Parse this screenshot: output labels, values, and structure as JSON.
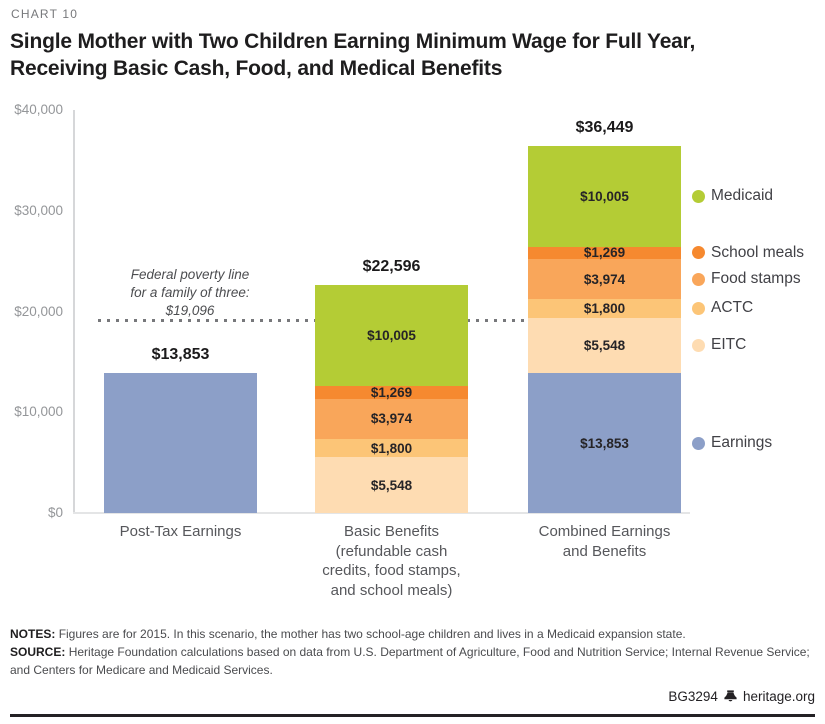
{
  "header": {
    "kicker": "CHART 10",
    "title": "Single Mother with Two Children Earning Minimum Wage for Full Year,\nReceiving Basic Cash, Food, and Medical Benefits"
  },
  "chart_data": {
    "type": "bar",
    "subtype": "stacked",
    "ylim": [
      0,
      40000
    ],
    "yticks": [
      0,
      10000,
      20000,
      30000,
      40000
    ],
    "ytick_labels": [
      "$0",
      "$10,000",
      "$20,000",
      "$30,000",
      "$40,000"
    ],
    "grid": "off",
    "legend_position": "right",
    "colors": {
      "Medicaid": "#b4cc35",
      "School meals": "#f6892f",
      "Food stamps": "#f9a65a",
      "ACTC": "#fcc577",
      "EITC": "#fedcb2",
      "Earnings": "#8c9fc8"
    },
    "categories": [
      "Post-Tax Earnings",
      "Basic Benefits (refundable cash credits, food stamps, and school meals)",
      "Combined Earnings and Benefits"
    ],
    "bars": [
      {
        "label": "Post-Tax Earnings",
        "total": 13853,
        "total_label": "$13,853",
        "segments": [
          {
            "name": "Earnings",
            "value": 13853,
            "label": "",
            "show_label": false
          }
        ]
      },
      {
        "label": "Basic Benefits\n(refundable cash\ncredits, food stamps,\nand school meals)",
        "total": 22596,
        "total_label": "$22,596",
        "segments": [
          {
            "name": "EITC",
            "value": 5548,
            "label": "$5,548",
            "show_label": true
          },
          {
            "name": "ACTC",
            "value": 1800,
            "label": "$1,800",
            "show_label": true
          },
          {
            "name": "Food stamps",
            "value": 3974,
            "label": "$3,974",
            "show_label": true
          },
          {
            "name": "School meals",
            "value": 1269,
            "label": "$1,269",
            "show_label": true
          },
          {
            "name": "Medicaid",
            "value": 10005,
            "label": "$10,005",
            "show_label": true
          }
        ]
      },
      {
        "label": "Combined Earnings\nand Benefits",
        "total": 36449,
        "total_label": "$36,449",
        "segments": [
          {
            "name": "Earnings",
            "value": 13853,
            "label": "$13,853",
            "show_label": true
          },
          {
            "name": "EITC",
            "value": 5548,
            "label": "$5,548",
            "show_label": true
          },
          {
            "name": "ACTC",
            "value": 1800,
            "label": "$1,800",
            "show_label": true
          },
          {
            "name": "Food stamps",
            "value": 3974,
            "label": "$3,974",
            "show_label": true
          },
          {
            "name": "School meals",
            "value": 1269,
            "label": "$1,269",
            "show_label": true
          },
          {
            "name": "Medicaid",
            "value": 10005,
            "label": "$10,005",
            "show_label": true
          }
        ]
      }
    ],
    "reference_line": {
      "value": 19096,
      "label": "Federal poverty line\nfor a family of three:\n$19,096"
    },
    "legend": [
      {
        "name": "Medicaid"
      },
      {
        "name": "School meals"
      },
      {
        "name": "Food stamps"
      },
      {
        "name": "ACTC"
      },
      {
        "name": "EITC"
      },
      {
        "name": "Earnings"
      }
    ]
  },
  "notes": {
    "label": "NOTES:",
    "text": "Figures are for 2015. In this scenario, the mother has two school-age children and lives in a Medicaid expansion state."
  },
  "source": {
    "label": "SOURCE:",
    "text": "Heritage Foundation calculations based on data from U.S. Department of Agriculture, Food and Nutrition Service; Internal Revenue Service; and Centers for Medicare and Medicaid Services."
  },
  "footer": {
    "id": "BG3294",
    "site": "heritage.org"
  }
}
